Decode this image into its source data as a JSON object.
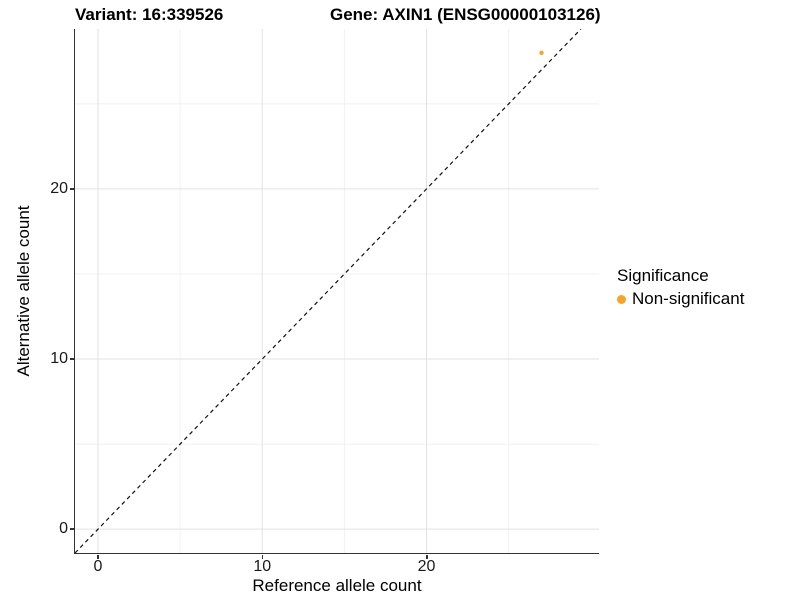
{
  "figure": {
    "title_left": "Variant: 16:339526",
    "title_right": "Gene: AXIN1 (ENSG00000103126)"
  },
  "chart_data": {
    "type": "scatter",
    "title": "Variant: 16:339526    Gene: AXIN1 (ENSG00000103126)",
    "xlabel": "Reference allele count",
    "ylabel": "Alternative allele count",
    "x_ticks": [
      0,
      10,
      20
    ],
    "y_ticks": [
      0,
      10,
      20
    ],
    "x_minor_ticks": [
      5,
      15,
      25
    ],
    "y_minor_ticks": [
      5,
      15,
      25
    ],
    "xlim": [
      -1.4,
      30.5
    ],
    "ylim": [
      -1.4,
      29.4
    ],
    "grid": "major and minor, light gray on white",
    "series": [
      {
        "name": "Non-significant",
        "color": "#F9A326",
        "points": [
          [
            27,
            28
          ]
        ],
        "point_radius": 2.2
      }
    ],
    "reference_line": {
      "equation": "y = x",
      "style": "dashed",
      "color": "#111111"
    },
    "legend": {
      "title": "Significance",
      "position": "right",
      "entries": [
        {
          "label": "Non-significant",
          "color": "#F9A326"
        }
      ]
    }
  },
  "colors": {
    "background": "#ffffff",
    "axis_line": "#333333",
    "grid_major": "#e2e2e2",
    "grid_minor": "#f0f0f0",
    "tick_text": "#1a1a1a"
  }
}
